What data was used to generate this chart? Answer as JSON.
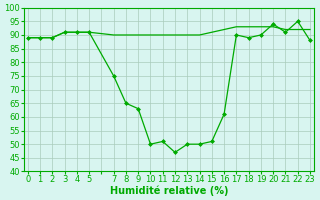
{
  "x_values": [
    0,
    1,
    2,
    3,
    4,
    5,
    7,
    8,
    9,
    10,
    11,
    12,
    13,
    14,
    15,
    16,
    17,
    18,
    19,
    20,
    21,
    22,
    23
  ],
  "y_values": [
    89,
    89,
    89,
    91,
    91,
    91,
    75,
    65,
    63,
    50,
    51,
    47,
    50,
    50,
    51,
    61,
    90,
    89,
    90,
    94,
    91,
    95,
    88
  ],
  "y2_x": [
    0,
    1,
    2,
    3,
    4,
    5,
    7,
    8,
    9,
    10,
    11,
    12,
    13,
    14,
    15,
    16,
    17,
    18,
    19,
    20,
    21,
    22,
    23
  ],
  "y2_values": [
    89,
    89,
    89,
    91,
    91,
    91,
    90,
    90,
    90,
    90,
    90,
    90,
    90,
    90,
    91,
    92,
    93,
    93,
    93,
    93,
    92,
    92,
    92
  ],
  "line_color": "#00aa00",
  "bg_color": "#d8f5f0",
  "grid_color": "#aaccbb",
  "xlabel": "Humidité relative (%)",
  "ylim": [
    40,
    100
  ],
  "yticks": [
    40,
    45,
    50,
    55,
    60,
    65,
    70,
    75,
    80,
    85,
    90,
    95,
    100
  ],
  "xtick_labels": [
    "0",
    "1",
    "2",
    "3",
    "4",
    "5",
    "",
    "7",
    "8",
    "9",
    "10",
    "11",
    "12",
    "13",
    "14",
    "15",
    "16",
    "17",
    "18",
    "19",
    "20",
    "21",
    "22",
    "23"
  ],
  "axis_fontsize": 6,
  "xlabel_fontsize": 7
}
